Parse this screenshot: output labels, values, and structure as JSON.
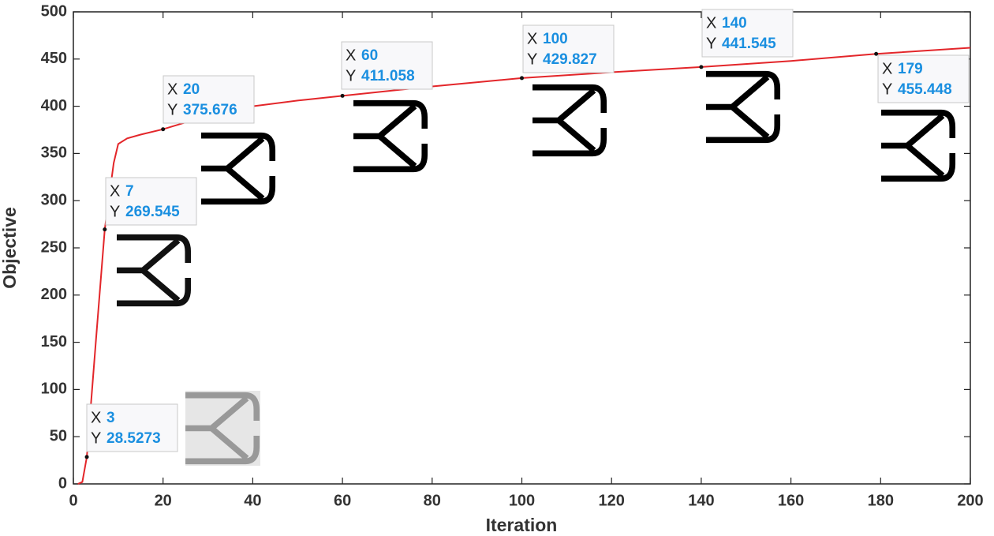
{
  "chart_data": {
    "type": "line",
    "x_label": "Iteration",
    "y_label": "Objective",
    "x": [
      1,
      2,
      3,
      5,
      7,
      9,
      10,
      12,
      15,
      20,
      30,
      40,
      50,
      60,
      80,
      100,
      120,
      140,
      160,
      179,
      200
    ],
    "series": [
      {
        "color": "#e3262a",
        "values": [
          0,
          2,
          28.5273,
          150,
          269.545,
          340,
          360,
          366,
          370,
          375.676,
          390,
          400,
          406,
          411.058,
          421,
          429.827,
          436,
          441.545,
          448,
          455.448,
          462
        ]
      }
    ],
    "xlim": [
      0,
      200
    ],
    "xticks": [
      0,
      20,
      40,
      60,
      80,
      100,
      120,
      140,
      160,
      180,
      200
    ],
    "ylim": [
      0,
      500
    ],
    "yticks": [
      0,
      50,
      100,
      150,
      200,
      250,
      300,
      350,
      400,
      450,
      500
    ],
    "grid": false,
    "datatip_labels": [
      "X",
      "Y"
    ],
    "datatips": [
      {
        "x": 3,
        "y": 28.5273
      },
      {
        "x": 7,
        "y": 269.545
      },
      {
        "x": 20,
        "y": 375.676
      },
      {
        "x": 60,
        "y": 411.058
      },
      {
        "x": 100,
        "y": 429.827
      },
      {
        "x": 140,
        "y": 441.545
      },
      {
        "x": 179,
        "y": 455.448
      }
    ]
  }
}
